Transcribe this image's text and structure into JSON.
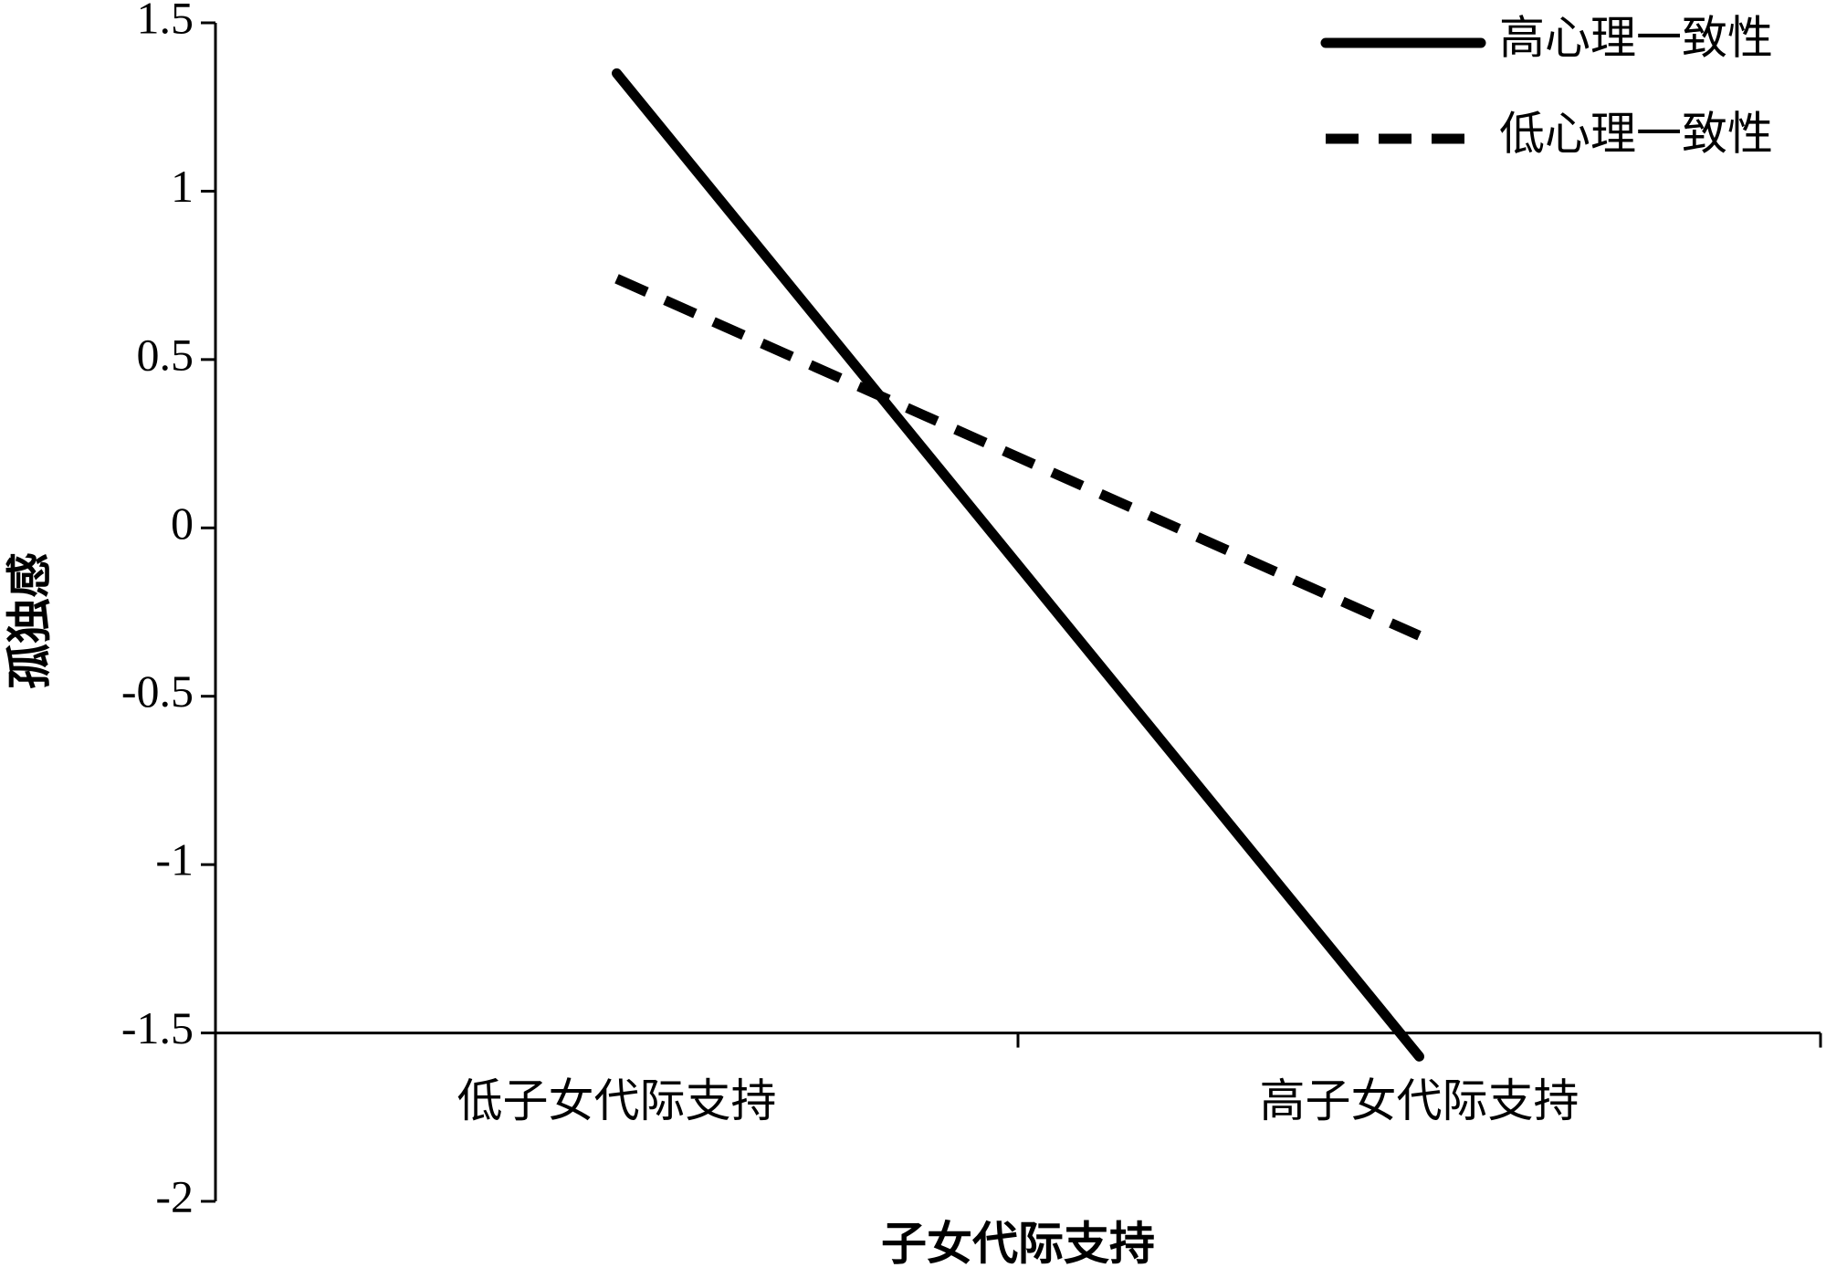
{
  "chart_data": {
    "type": "line",
    "x_label": "子女代际支持",
    "y_label": "孤独感",
    "categories": [
      "低子女代际支持",
      "高子女代际支持"
    ],
    "series": [
      {
        "name": "高心理一致性",
        "color": "#000000",
        "dash": "solid",
        "values": [
          1.35,
          -1.57
        ]
      },
      {
        "name": "低心理一致性",
        "color": "#000000",
        "dash": "dashed",
        "values": [
          0.74,
          -0.32
        ]
      }
    ],
    "ylim": [
      -2,
      1.5
    ],
    "yticks": [
      -2,
      -1.5,
      -1,
      -0.5,
      0,
      0.5,
      1,
      1.5
    ],
    "x_axis_crosses_at": -1.5,
    "legend": "top-right",
    "grid": false
  }
}
